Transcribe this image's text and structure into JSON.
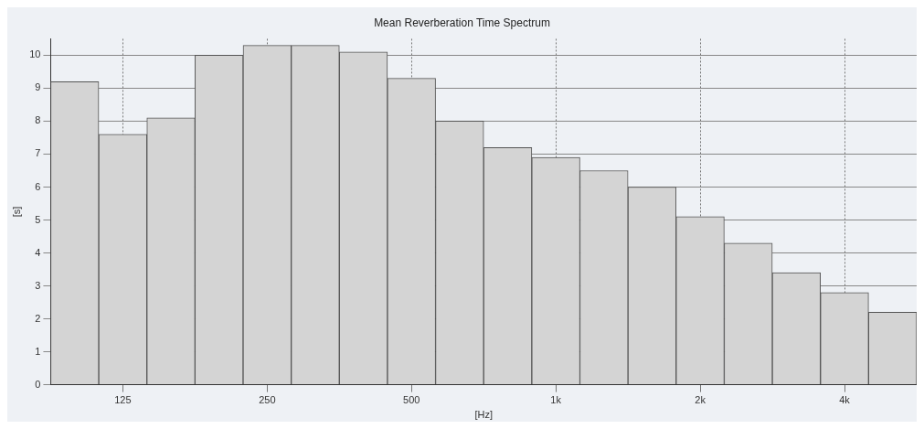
{
  "chart_data": {
    "type": "bar",
    "title": "Mean Reverberation Time Spectrum",
    "xlabel": "[Hz]",
    "ylabel": "[s]",
    "categories": [
      null,
      "125",
      null,
      null,
      "250",
      null,
      null,
      "500",
      null,
      null,
      "1k",
      null,
      null,
      "2k",
      null,
      null,
      "4k",
      null
    ],
    "values": [
      9.2,
      7.6,
      8.1,
      10.0,
      10.3,
      10.3,
      10.1,
      9.3,
      8.0,
      7.2,
      6.9,
      6.5,
      6.0,
      5.1,
      4.3,
      3.4,
      2.8,
      2.2
    ],
    "color": "#d4d4d4",
    "ylim": [
      0,
      10.5
    ],
    "yticks": [
      0,
      1,
      2,
      3,
      4,
      5,
      6,
      7,
      8,
      9,
      10
    ],
    "grid": true
  }
}
